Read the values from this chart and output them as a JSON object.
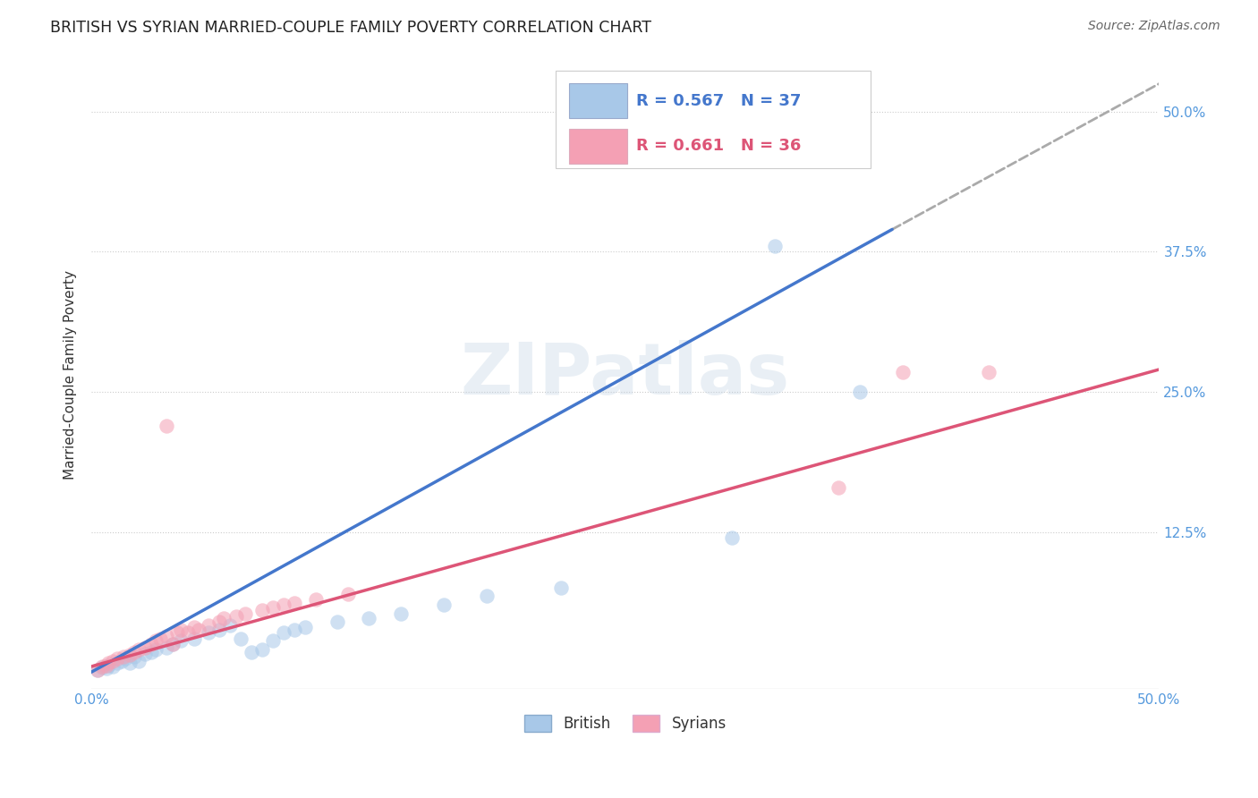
{
  "title": "BRITISH VS SYRIAN MARRIED-COUPLE FAMILY POVERTY CORRELATION CHART",
  "source_text": "Source: ZipAtlas.com",
  "ylabel": "Married-Couple Family Poverty",
  "xlim": [
    0.0,
    0.5
  ],
  "ylim": [
    -0.015,
    0.545
  ],
  "xticks": [
    0.0,
    0.125,
    0.25,
    0.375,
    0.5
  ],
  "xticklabels": [
    "0.0%",
    "",
    "",
    "",
    "50.0%"
  ],
  "ytick_labels_right": [
    "50.0%",
    "37.5%",
    "25.0%",
    "12.5%"
  ],
  "ytick_values_right": [
    0.5,
    0.375,
    0.25,
    0.125
  ],
  "legend_entries": [
    {
      "label": "R = 0.567   N = 37",
      "color": "#a8c8e8"
    },
    {
      "label": "R = 0.661   N = 36",
      "color": "#f4a0b4"
    }
  ],
  "legend_bottom": [
    "British",
    "Syrians"
  ],
  "legend_bottom_colors": [
    "#a8c8e8",
    "#f4a0b4"
  ],
  "watermark": "ZIPatlas",
  "british_scatter": [
    [
      0.003,
      0.002
    ],
    [
      0.005,
      0.004
    ],
    [
      0.007,
      0.003
    ],
    [
      0.008,
      0.006
    ],
    [
      0.01,
      0.005
    ],
    [
      0.012,
      0.008
    ],
    [
      0.014,
      0.01
    ],
    [
      0.016,
      0.012
    ],
    [
      0.018,
      0.008
    ],
    [
      0.02,
      0.014
    ],
    [
      0.022,
      0.01
    ],
    [
      0.025,
      0.016
    ],
    [
      0.028,
      0.018
    ],
    [
      0.03,
      0.02
    ],
    [
      0.035,
      0.022
    ],
    [
      0.038,
      0.025
    ],
    [
      0.042,
      0.028
    ],
    [
      0.048,
      0.03
    ],
    [
      0.055,
      0.035
    ],
    [
      0.06,
      0.038
    ],
    [
      0.065,
      0.042
    ],
    [
      0.07,
      0.03
    ],
    [
      0.075,
      0.018
    ],
    [
      0.08,
      0.02
    ],
    [
      0.085,
      0.028
    ],
    [
      0.09,
      0.035
    ],
    [
      0.095,
      0.038
    ],
    [
      0.1,
      0.04
    ],
    [
      0.115,
      0.045
    ],
    [
      0.13,
      0.048
    ],
    [
      0.145,
      0.052
    ],
    [
      0.165,
      0.06
    ],
    [
      0.185,
      0.068
    ],
    [
      0.22,
      0.075
    ],
    [
      0.3,
      0.12
    ],
    [
      0.36,
      0.25
    ],
    [
      0.32,
      0.38
    ]
  ],
  "syrian_scatter": [
    [
      0.003,
      0.002
    ],
    [
      0.005,
      0.005
    ],
    [
      0.007,
      0.006
    ],
    [
      0.008,
      0.008
    ],
    [
      0.01,
      0.01
    ],
    [
      0.012,
      0.012
    ],
    [
      0.015,
      0.014
    ],
    [
      0.018,
      0.015
    ],
    [
      0.02,
      0.018
    ],
    [
      0.022,
      0.02
    ],
    [
      0.025,
      0.022
    ],
    [
      0.028,
      0.025
    ],
    [
      0.03,
      0.028
    ],
    [
      0.032,
      0.03
    ],
    [
      0.035,
      0.032
    ],
    [
      0.038,
      0.025
    ],
    [
      0.04,
      0.035
    ],
    [
      0.042,
      0.038
    ],
    [
      0.045,
      0.035
    ],
    [
      0.048,
      0.04
    ],
    [
      0.05,
      0.038
    ],
    [
      0.055,
      0.042
    ],
    [
      0.06,
      0.045
    ],
    [
      0.062,
      0.048
    ],
    [
      0.068,
      0.05
    ],
    [
      0.072,
      0.052
    ],
    [
      0.08,
      0.055
    ],
    [
      0.085,
      0.058
    ],
    [
      0.09,
      0.06
    ],
    [
      0.095,
      0.062
    ],
    [
      0.105,
      0.065
    ],
    [
      0.12,
      0.07
    ],
    [
      0.035,
      0.22
    ],
    [
      0.38,
      0.268
    ],
    [
      0.42,
      0.268
    ],
    [
      0.35,
      0.165
    ]
  ],
  "british_trendline_solid": [
    [
      0.0,
      0.0
    ],
    [
      0.375,
      0.395
    ]
  ],
  "british_trendline_dashed": [
    [
      0.375,
      0.395
    ],
    [
      0.5,
      0.525
    ]
  ],
  "syrian_trendline": [
    [
      0.0,
      0.005
    ],
    [
      0.5,
      0.27
    ]
  ],
  "grid_color": "#cccccc",
  "scatter_alpha": 0.55,
  "scatter_size": 140,
  "bg_color": "#ffffff",
  "title_color": "#222222",
  "title_fontsize": 12.5,
  "axis_label_fontsize": 11,
  "tick_label_fontsize": 11,
  "tick_label_color_blue": "#5599dd",
  "source_fontsize": 10,
  "source_color": "#666666",
  "blue_line_color": "#4477cc",
  "pink_line_color": "#dd5577",
  "dashed_color": "#aaaaaa"
}
